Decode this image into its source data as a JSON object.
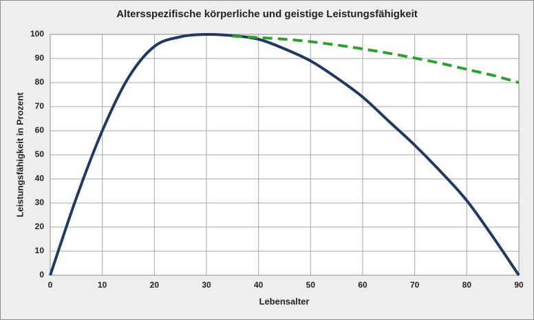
{
  "chart_data": {
    "type": "line",
    "title": "Altersspezifische körperliche und geistige Leistungsfähigkeit",
    "x_label": "Lebensalter",
    "y_label": "Leistungsfähigkeit in Prozent",
    "x": [
      0,
      5,
      10,
      15,
      20,
      25,
      30,
      35,
      40,
      45,
      50,
      55,
      60,
      65,
      70,
      75,
      80,
      85,
      90
    ],
    "series": [
      {
        "color": "#1f3864",
        "dash": false,
        "values": [
          0,
          32,
          60,
          82,
          95,
          99,
          100,
          99.5,
          98,
          94,
          89,
          82,
          74,
          64,
          54,
          43,
          31,
          16,
          0
        ]
      },
      {
        "color": "#2ca02c",
        "dash": true,
        "values": [
          null,
          null,
          null,
          null,
          null,
          null,
          null,
          99.3,
          98.7,
          98,
          97,
          95.6,
          94,
          92.2,
          90.2,
          88,
          85.5,
          83,
          80
        ]
      }
    ],
    "xlim": [
      0,
      90
    ],
    "xticks": [
      0,
      10,
      20,
      30,
      40,
      50,
      60,
      70,
      80,
      90
    ],
    "ylim": [
      0,
      100
    ],
    "yticks": [
      0,
      10,
      20,
      30,
      40,
      50,
      60,
      70,
      80,
      90,
      100
    ],
    "grid": true
  }
}
